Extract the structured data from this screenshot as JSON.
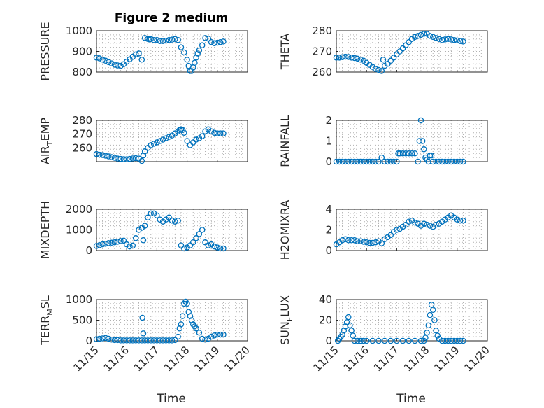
{
  "title": "Figure 2 medium",
  "chart_data": [
    {
      "type": "scatter",
      "ylabel": "PRESSURE",
      "ylabel_sub": "",
      "ylabel_end": "",
      "title": "Figure 2 medium",
      "ylim": [
        800,
        1000
      ],
      "yticks": [
        800,
        900,
        1000
      ],
      "xlim": [
        0,
        5
      ],
      "grid": true,
      "x": [
        0,
        0.1,
        0.2,
        0.3,
        0.4,
        0.5,
        0.6,
        0.7,
        0.8,
        0.9,
        1.0,
        1.1,
        1.2,
        1.3,
        1.4,
        1.5,
        1.6,
        1.7,
        1.75,
        1.8,
        1.9,
        2.0,
        2.1,
        2.2,
        2.3,
        2.4,
        2.5,
        2.6,
        2.7,
        2.8,
        2.9,
        3.0,
        3.05,
        3.1,
        3.15,
        3.2,
        3.25,
        3.3,
        3.35,
        3.4,
        3.5,
        3.6,
        3.7,
        3.8,
        3.9,
        4.0,
        4.1,
        4.2
      ],
      "y": [
        870,
        866,
        860,
        855,
        848,
        842,
        836,
        832,
        830,
        838,
        850,
        862,
        874,
        885,
        890,
        860,
        965,
        960,
        958,
        960,
        955,
        955,
        950,
        950,
        952,
        955,
        957,
        960,
        955,
        920,
        895,
        860,
        830,
        805,
        805,
        822,
        845,
        870,
        890,
        905,
        930,
        965,
        962,
        945,
        940,
        942,
        945,
        948
      ]
    },
    {
      "type": "scatter",
      "ylabel": "THETA",
      "ylabel_sub": "",
      "ylabel_end": "",
      "ylim": [
        260,
        280
      ],
      "yticks": [
        260,
        270,
        280
      ],
      "xlim": [
        0,
        5
      ],
      "grid": true,
      "x": [
        0,
        0.1,
        0.2,
        0.3,
        0.4,
        0.5,
        0.6,
        0.7,
        0.8,
        0.9,
        1.0,
        1.1,
        1.2,
        1.3,
        1.4,
        1.5,
        1.55,
        1.6,
        1.7,
        1.8,
        1.9,
        2.0,
        2.1,
        2.2,
        2.3,
        2.4,
        2.5,
        2.6,
        2.7,
        2.8,
        2.9,
        3.0,
        3.1,
        3.2,
        3.3,
        3.4,
        3.5,
        3.6,
        3.7,
        3.8,
        3.9,
        4.0,
        4.1,
        4.2
      ],
      "y": [
        267,
        267,
        267.2,
        267.4,
        267.3,
        267,
        266.8,
        266.5,
        266,
        265.5,
        264.5,
        263.5,
        262.5,
        261.5,
        261,
        260.5,
        266,
        263,
        264,
        265.5,
        267,
        268.5,
        270,
        271.5,
        273,
        274.5,
        276,
        277,
        277.5,
        278,
        278.5,
        278.5,
        277.5,
        277,
        276.5,
        276,
        275.5,
        275.8,
        276,
        275.8,
        275.5,
        275.3,
        275,
        274.8
      ]
    },
    {
      "type": "scatter",
      "ylabel": "AIR",
      "ylabel_sub": "T",
      "ylabel_end": "EMP",
      "ylim": [
        250,
        280
      ],
      "yticks": [
        260,
        270,
        280
      ],
      "xlim": [
        0,
        5
      ],
      "grid": true,
      "x": [
        0,
        0.1,
        0.2,
        0.3,
        0.4,
        0.5,
        0.6,
        0.7,
        0.8,
        0.9,
        1.0,
        1.1,
        1.2,
        1.3,
        1.4,
        1.5,
        1.55,
        1.6,
        1.7,
        1.8,
        1.9,
        2.0,
        2.1,
        2.2,
        2.3,
        2.4,
        2.5,
        2.6,
        2.7,
        2.75,
        2.8,
        2.85,
        2.9,
        3.0,
        3.1,
        3.2,
        3.3,
        3.4,
        3.5,
        3.6,
        3.7,
        3.8,
        3.9,
        4.0,
        4.1,
        4.2
      ],
      "y": [
        255.5,
        255,
        254.8,
        254.3,
        253.8,
        253.3,
        252.8,
        252.2,
        252,
        251.8,
        251.7,
        252,
        252.3,
        252.5,
        252.2,
        250.5,
        254.5,
        257.5,
        260,
        262,
        263,
        264,
        265,
        266,
        267,
        268,
        269,
        270.5,
        272,
        273,
        273.5,
        273,
        271,
        265,
        262,
        264,
        266,
        267,
        268.5,
        272,
        273.5,
        272,
        271,
        270.5,
        270.5,
        270.5
      ]
    },
    {
      "type": "scatter",
      "ylabel": "RAINFALL",
      "ylabel_sub": "",
      "ylabel_end": "",
      "ylim": [
        0,
        2
      ],
      "yticks": [
        0,
        1,
        2
      ],
      "xlim": [
        0,
        5
      ],
      "grid": true,
      "x": [
        0,
        0.1,
        0.2,
        0.3,
        0.4,
        0.5,
        0.6,
        0.7,
        0.8,
        0.9,
        1.0,
        1.1,
        1.2,
        1.3,
        1.4,
        1.5,
        1.6,
        1.7,
        1.8,
        1.9,
        2.0,
        2.05,
        2.1,
        2.2,
        2.3,
        2.4,
        2.5,
        2.6,
        2.7,
        2.75,
        2.8,
        2.85,
        2.9,
        2.95,
        3.0,
        3.05,
        3.1,
        3.15,
        3.2,
        3.3,
        3.4,
        3.5,
        3.6,
        3.7,
        3.8,
        3.9,
        4.0,
        4.1,
        4.2
      ],
      "y": [
        0,
        0,
        0,
        0,
        0,
        0,
        0,
        0,
        0,
        0,
        0,
        0,
        0,
        0,
        0,
        0.2,
        0,
        0,
        0,
        0,
        0,
        0.4,
        0.4,
        0.4,
        0.4,
        0.4,
        0.4,
        0.4,
        0,
        1.0,
        2.0,
        1.0,
        0.6,
        0.2,
        0.1,
        0,
        0.3,
        0.3,
        0,
        0,
        0,
        0,
        0,
        0,
        0,
        0,
        0,
        0,
        0
      ]
    },
    {
      "type": "scatter",
      "ylabel": "MIXDEPTH",
      "ylabel_sub": "",
      "ylabel_end": "",
      "ylim": [
        0,
        2000
      ],
      "yticks": [
        0,
        1000,
        2000
      ],
      "xlim": [
        0,
        5
      ],
      "grid": true,
      "x": [
        0,
        0.1,
        0.2,
        0.3,
        0.4,
        0.5,
        0.6,
        0.7,
        0.8,
        0.9,
        1.0,
        1.1,
        1.2,
        1.3,
        1.4,
        1.5,
        1.55,
        1.6,
        1.7,
        1.8,
        1.9,
        2.0,
        2.1,
        2.2,
        2.3,
        2.4,
        2.5,
        2.6,
        2.7,
        2.8,
        2.9,
        3.0,
        3.1,
        3.2,
        3.3,
        3.4,
        3.5,
        3.6,
        3.7,
        3.8,
        3.9,
        4.0,
        4.1,
        4.2
      ],
      "y": [
        220,
        260,
        300,
        330,
        360,
        380,
        400,
        430,
        460,
        480,
        300,
        200,
        240,
        600,
        1000,
        1100,
        500,
        1200,
        1600,
        1800,
        1800,
        1700,
        1500,
        1400,
        1500,
        1600,
        1450,
        1400,
        1450,
        250,
        100,
        150,
        250,
        400,
        600,
        800,
        1000,
        400,
        250,
        300,
        200,
        150,
        100,
        100
      ]
    },
    {
      "type": "scatter",
      "ylabel": "H2OMIXRA",
      "ylabel_sub": "",
      "ylabel_end": "",
      "ylim": [
        0,
        4
      ],
      "yticks": [
        0,
        2,
        4
      ],
      "xlim": [
        0,
        5
      ],
      "grid": true,
      "x": [
        0,
        0.1,
        0.2,
        0.3,
        0.4,
        0.5,
        0.6,
        0.7,
        0.8,
        0.9,
        1.0,
        1.1,
        1.2,
        1.3,
        1.4,
        1.5,
        1.6,
        1.7,
        1.8,
        1.9,
        2.0,
        2.1,
        2.2,
        2.3,
        2.4,
        2.5,
        2.6,
        2.7,
        2.8,
        2.9,
        3.0,
        3.1,
        3.2,
        3.3,
        3.4,
        3.5,
        3.6,
        3.7,
        3.8,
        3.9,
        4.0,
        4.1,
        4.2
      ],
      "y": [
        0.6,
        0.8,
        1.0,
        1.1,
        1.0,
        1.0,
        1.0,
        0.9,
        0.9,
        0.85,
        0.8,
        0.75,
        0.75,
        0.8,
        0.9,
        0.7,
        1.1,
        1.3,
        1.5,
        1.8,
        2.0,
        2.1,
        2.3,
        2.5,
        2.8,
        2.9,
        2.7,
        2.6,
        2.4,
        2.6,
        2.5,
        2.4,
        2.3,
        2.5,
        2.6,
        2.8,
        3.0,
        3.2,
        3.4,
        3.2,
        3.0,
        2.9,
        2.9
      ]
    },
    {
      "type": "scatter",
      "ylabel": "TERR",
      "ylabel_sub": "M",
      "ylabel_end": "SL",
      "ylim": [
        0,
        1000
      ],
      "yticks": [
        0,
        500,
        1000
      ],
      "xlim": [
        0,
        5
      ],
      "grid": true,
      "x": [
        0,
        0.1,
        0.2,
        0.3,
        0.4,
        0.5,
        0.6,
        0.7,
        0.8,
        0.9,
        1.0,
        1.1,
        1.2,
        1.3,
        1.4,
        1.5,
        1.52,
        1.55,
        1.6,
        1.7,
        1.8,
        1.9,
        2.0,
        2.1,
        2.2,
        2.3,
        2.4,
        2.5,
        2.6,
        2.7,
        2.75,
        2.8,
        2.85,
        2.9,
        2.95,
        3.0,
        3.05,
        3.1,
        3.15,
        3.2,
        3.25,
        3.3,
        3.4,
        3.5,
        3.6,
        3.7,
        3.8,
        3.9,
        4.0,
        4.1,
        4.2
      ],
      "y": [
        40,
        50,
        60,
        70,
        50,
        30,
        20,
        20,
        10,
        10,
        10,
        10,
        10,
        10,
        10,
        10,
        560,
        180,
        10,
        10,
        10,
        10,
        10,
        10,
        10,
        10,
        10,
        10,
        20,
        100,
        300,
        400,
        600,
        900,
        950,
        900,
        700,
        600,
        500,
        400,
        350,
        300,
        200,
        50,
        30,
        50,
        100,
        130,
        150,
        150,
        150
      ]
    },
    {
      "type": "scatter",
      "ylabel": "SUN",
      "ylabel_sub": "F",
      "ylabel_end": "LUX",
      "ylim": [
        0,
        40
      ],
      "yticks": [
        0,
        20,
        40
      ],
      "xlim": [
        0,
        5
      ],
      "grid": true,
      "x": [
        0.05,
        0.1,
        0.15,
        0.2,
        0.25,
        0.3,
        0.35,
        0.4,
        0.45,
        0.5,
        0.55,
        0.6,
        0.7,
        0.8,
        0.9,
        1.0,
        1.2,
        1.4,
        1.6,
        1.8,
        2.0,
        2.2,
        2.4,
        2.6,
        2.8,
        2.9,
        2.95,
        3.0,
        3.05,
        3.1,
        3.15,
        3.2,
        3.25,
        3.3,
        3.35,
        3.4,
        3.5,
        3.6,
        3.7,
        3.8,
        3.9,
        4.0,
        4.1,
        4.2
      ],
      "y": [
        0,
        2,
        4,
        6,
        10,
        14,
        18,
        23,
        15,
        10,
        5,
        0,
        0,
        0,
        0,
        0,
        0,
        0,
        0,
        0,
        0,
        0,
        0,
        0,
        0,
        0,
        3,
        8,
        15,
        25,
        35,
        30,
        20,
        10,
        5,
        2,
        0,
        0,
        0,
        0,
        0,
        0,
        0,
        0
      ]
    }
  ],
  "xaxis": {
    "ticks": [
      "11/15",
      "11/16",
      "11/17",
      "11/18",
      "11/19",
      "11/20"
    ],
    "label": "Time"
  }
}
